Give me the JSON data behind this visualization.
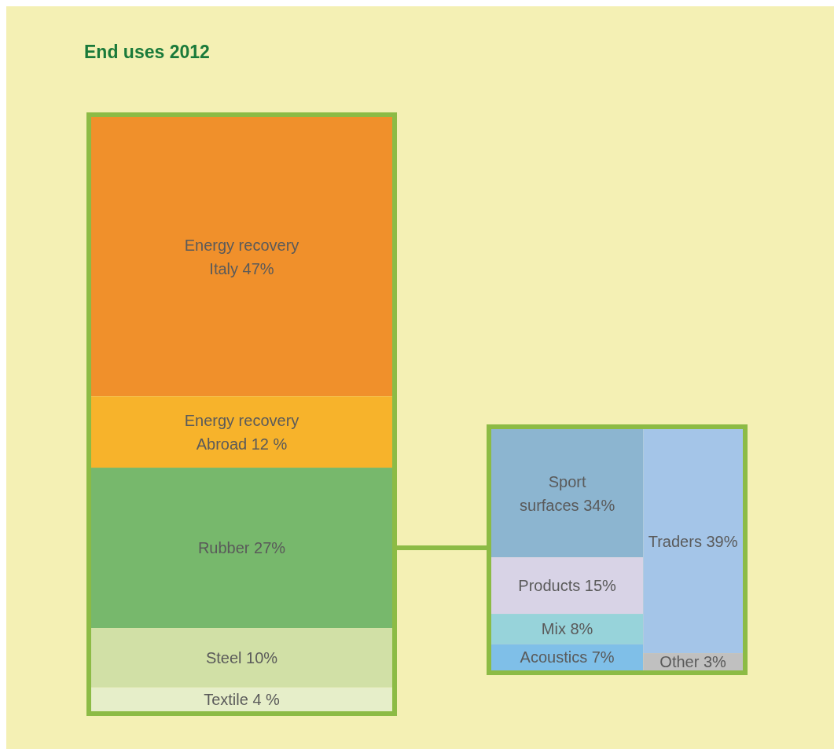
{
  "chart_data": [
    {
      "type": "other",
      "title": "End uses 2012",
      "categories": [
        "Energy recovery Italy",
        "Energy recovery Abroad",
        "Rubber",
        "Steel",
        "Textile"
      ],
      "values": [
        47,
        12,
        27,
        10,
        4
      ],
      "value_labels": [
        "47%",
        "12 %",
        "27%",
        "10%",
        "4 %"
      ],
      "colors": [
        "#f0902b",
        "#f7b32b",
        "#77b86c",
        "#d1e0a6",
        "#e6eec9"
      ]
    },
    {
      "type": "other",
      "categories": [
        "Sport surfaces",
        "Products",
        "Mix",
        "Acoustics",
        "Traders",
        "Other"
      ],
      "values": [
        34,
        15,
        8,
        7,
        39,
        3
      ],
      "value_labels": [
        "34%",
        "15%",
        "8%",
        "7%",
        "39%",
        "3%"
      ],
      "colors": [
        "#8cb5d0",
        "#d8d3e6",
        "#97d3da",
        "#7fbfe8",
        "#a4c5e8",
        "#c0c0c0"
      ]
    }
  ]
}
